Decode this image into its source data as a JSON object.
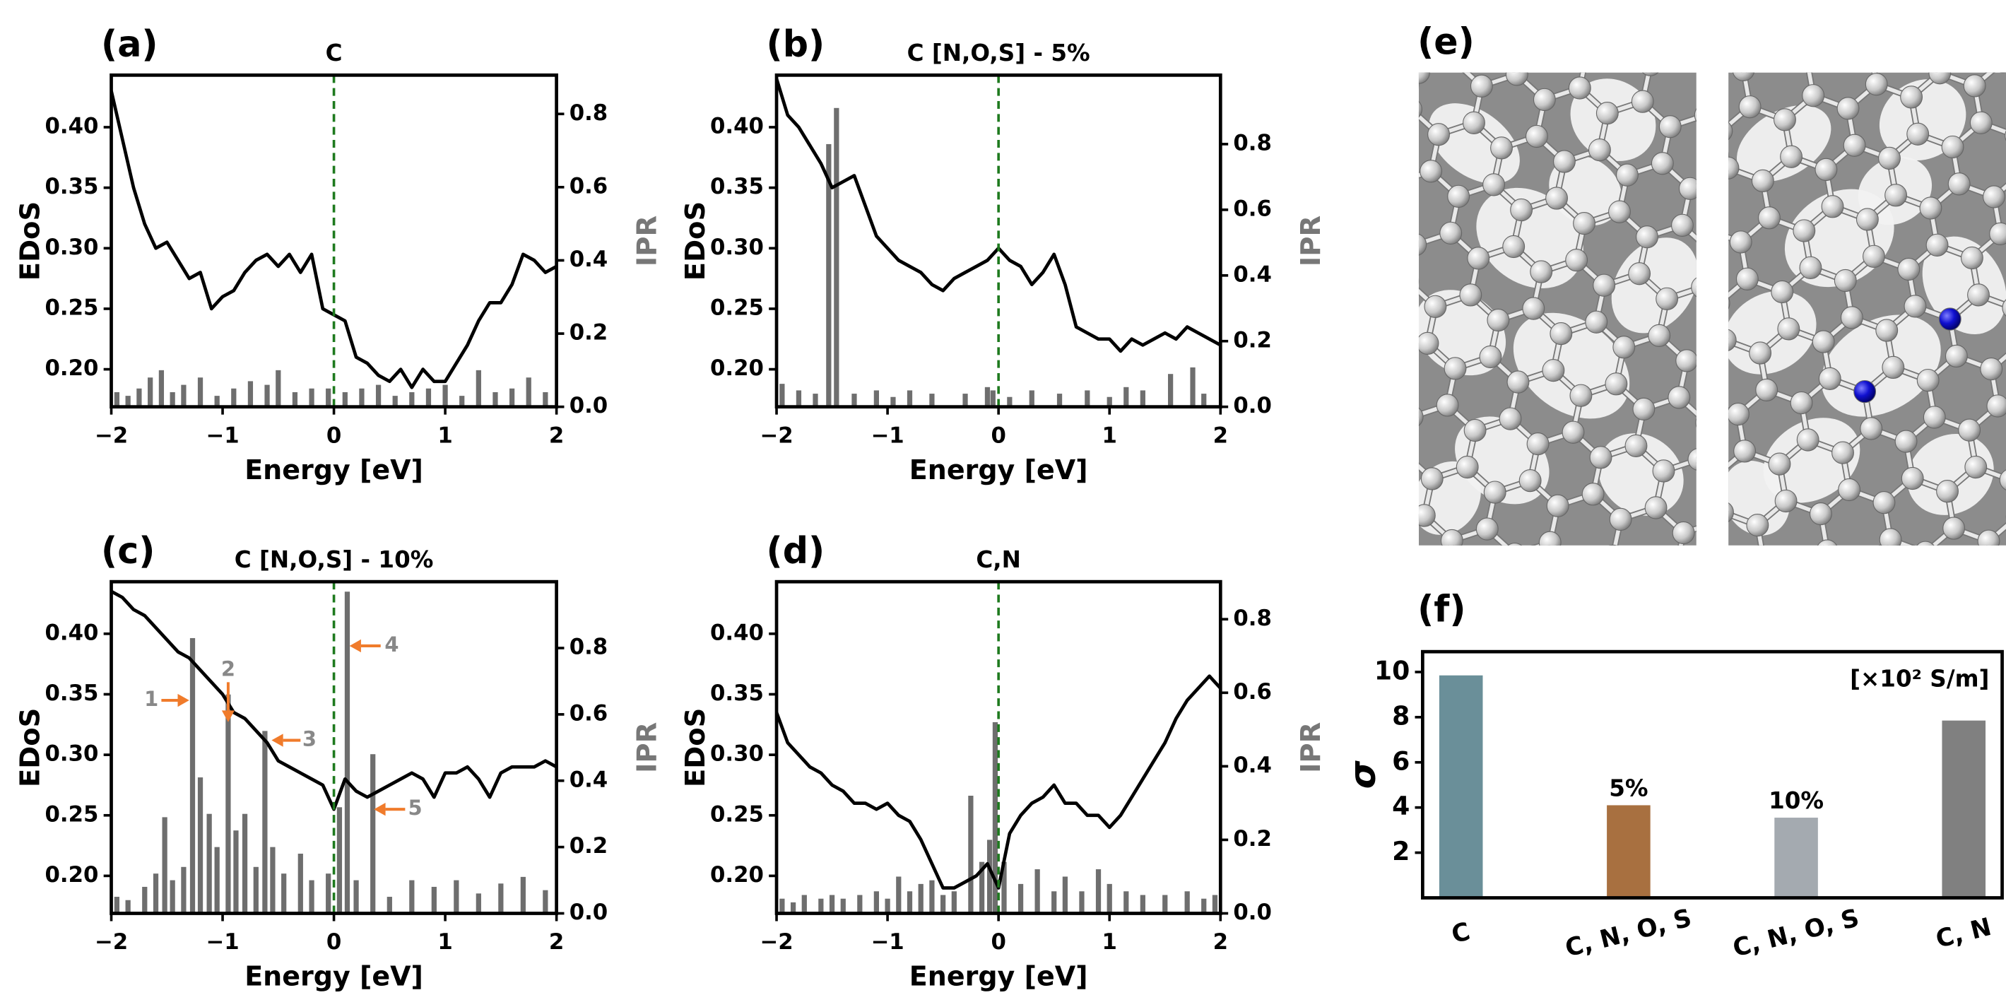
{
  "chart_data": [
    {
      "type": "line",
      "panel_label": "(a)",
      "title": "C",
      "xlabel": "Energy [eV]",
      "ylabel": "EDoS",
      "y2label": "IPR",
      "x": [
        -2,
        -1.9,
        -1.8,
        -1.7,
        -1.6,
        -1.5,
        -1.4,
        -1.3,
        -1.2,
        -1.1,
        -1,
        -0.9,
        -0.8,
        -0.7,
        -0.6,
        -0.5,
        -0.4,
        -0.3,
        -0.2,
        -0.1,
        0,
        0.1,
        0.2,
        0.3,
        0.4,
        0.5,
        0.6,
        0.7,
        0.8,
        0.9,
        1,
        1.1,
        1.2,
        1.3,
        1.4,
        1.5,
        1.6,
        1.7,
        1.8,
        1.9,
        2
      ],
      "series": [
        {
          "color": "#000000",
          "values": [
            0.43,
            0.39,
            0.35,
            0.32,
            0.3,
            0.305,
            0.29,
            0.275,
            0.28,
            0.25,
            0.26,
            0.265,
            0.28,
            0.29,
            0.295,
            0.285,
            0.295,
            0.28,
            0.295,
            0.25,
            0.245,
            0.24,
            0.21,
            0.205,
            0.195,
            0.19,
            0.2,
            0.185,
            0.2,
            0.19,
            0.19,
            0.205,
            0.22,
            0.24,
            0.255,
            0.255,
            0.27,
            0.295,
            0.29,
            0.28,
            0.285
          ]
        },
        {
          "type": "bar",
          "axis": "y2",
          "color": "#6e6e6e",
          "x": [
            -1.95,
            -1.85,
            -1.75,
            -1.65,
            -1.55,
            -1.45,
            -1.35,
            -1.2,
            -1.05,
            -0.9,
            -0.75,
            -0.6,
            -0.5,
            -0.35,
            -0.2,
            -0.05,
            0.1,
            0.25,
            0.4,
            0.55,
            0.7,
            0.85,
            1.0,
            1.15,
            1.3,
            1.45,
            1.6,
            1.75,
            1.9
          ],
          "values": [
            0.04,
            0.03,
            0.05,
            0.08,
            0.1,
            0.04,
            0.06,
            0.08,
            0.03,
            0.05,
            0.07,
            0.06,
            0.1,
            0.04,
            0.05,
            0.05,
            0.04,
            0.05,
            0.06,
            0.03,
            0.04,
            0.05,
            0.06,
            0.03,
            0.1,
            0.04,
            0.05,
            0.08,
            0.04
          ]
        }
      ],
      "xlim": [
        -2,
        2
      ],
      "ylim": [
        0.169,
        0.443
      ],
      "y2lim": [
        0,
        0.906
      ],
      "xticks": [
        {
          "value": -2,
          "label": "−2"
        },
        {
          "value": -1,
          "label": "−1"
        },
        0,
        1,
        2
      ],
      "yticks": [
        {
          "value": 0.2,
          "label": "0.20"
        },
        {
          "value": 0.25,
          "label": "0.25"
        },
        {
          "value": 0.3,
          "label": "0.30"
        },
        {
          "value": 0.35,
          "label": "0.35"
        },
        {
          "value": 0.4,
          "label": "0.40"
        }
      ],
      "y2ticks": [
        {
          "value": 0,
          "label": "0.0"
        },
        0.2,
        0.4,
        0.6,
        0.8
      ],
      "vline": 0,
      "vline_color": "#1e7a1e"
    },
    {
      "type": "line",
      "panel_label": "(b)",
      "title": "C [N,O,S] - 5%",
      "xlabel": "Energy [eV]",
      "ylabel": "EDoS",
      "y2label": "IPR",
      "x": [
        -2,
        -1.9,
        -1.8,
        -1.7,
        -1.6,
        -1.5,
        -1.4,
        -1.3,
        -1.2,
        -1.1,
        -1,
        -0.9,
        -0.8,
        -0.7,
        -0.6,
        -0.5,
        -0.4,
        -0.3,
        -0.2,
        -0.1,
        0,
        0.1,
        0.2,
        0.3,
        0.4,
        0.5,
        0.6,
        0.7,
        0.8,
        0.9,
        1,
        1.1,
        1.2,
        1.3,
        1.4,
        1.5,
        1.6,
        1.7,
        1.8,
        1.9,
        2
      ],
      "series": [
        {
          "color": "#000000",
          "values": [
            0.44,
            0.41,
            0.4,
            0.385,
            0.37,
            0.35,
            0.355,
            0.36,
            0.335,
            0.31,
            0.3,
            0.29,
            0.285,
            0.28,
            0.27,
            0.265,
            0.275,
            0.28,
            0.285,
            0.29,
            0.3,
            0.29,
            0.285,
            0.27,
            0.28,
            0.295,
            0.27,
            0.235,
            0.23,
            0.225,
            0.225,
            0.215,
            0.225,
            0.22,
            0.225,
            0.23,
            0.225,
            0.235,
            0.23,
            0.225,
            0.22
          ]
        },
        {
          "type": "bar",
          "axis": "y2",
          "color": "#6e6e6e",
          "x": [
            -1.95,
            -1.8,
            -1.65,
            -1.53,
            -1.46,
            -1.3,
            -1.1,
            -0.95,
            -0.8,
            -0.6,
            -0.3,
            -0.1,
            -0.05,
            0.1,
            0.3,
            0.55,
            0.8,
            1.0,
            1.15,
            1.3,
            1.55,
            1.75,
            1.85
          ],
          "values": [
            0.07,
            0.05,
            0.04,
            0.8,
            0.91,
            0.04,
            0.05,
            0.03,
            0.05,
            0.04,
            0.04,
            0.06,
            0.05,
            0.03,
            0.05,
            0.04,
            0.05,
            0.03,
            0.06,
            0.05,
            0.1,
            0.12,
            0.04
          ]
        }
      ],
      "xlim": [
        -2,
        2
      ],
      "ylim": [
        0.169,
        0.443
      ],
      "y2lim": [
        0,
        1.01
      ],
      "xticks": [
        {
          "value": -2,
          "label": "−2"
        },
        {
          "value": -1,
          "label": "−1"
        },
        0,
        1,
        2
      ],
      "yticks": [
        {
          "value": 0.2,
          "label": "0.20"
        },
        {
          "value": 0.25,
          "label": "0.25"
        },
        {
          "value": 0.3,
          "label": "0.30"
        },
        {
          "value": 0.35,
          "label": "0.35"
        },
        {
          "value": 0.4,
          "label": "0.40"
        }
      ],
      "y2ticks": [
        {
          "value": 0,
          "label": "0.0"
        },
        0.2,
        0.4,
        0.6,
        0.8
      ],
      "vline": 0,
      "vline_color": "#1e7a1e"
    },
    {
      "type": "line",
      "panel_label": "(c)",
      "title": "C [N,O,S] - 10%",
      "xlabel": "Energy [eV]",
      "ylabel": "EDoS",
      "y2label": "IPR",
      "x": [
        -2,
        -1.9,
        -1.8,
        -1.7,
        -1.6,
        -1.5,
        -1.4,
        -1.3,
        -1.2,
        -1.1,
        -1,
        -0.9,
        -0.8,
        -0.7,
        -0.6,
        -0.5,
        -0.4,
        -0.3,
        -0.2,
        -0.1,
        0,
        0.1,
        0.2,
        0.3,
        0.4,
        0.5,
        0.6,
        0.7,
        0.8,
        0.9,
        1,
        1.1,
        1.2,
        1.3,
        1.4,
        1.5,
        1.6,
        1.7,
        1.8,
        1.9,
        2
      ],
      "series": [
        {
          "color": "#000000",
          "values": [
            0.435,
            0.43,
            0.42,
            0.415,
            0.405,
            0.395,
            0.385,
            0.38,
            0.37,
            0.36,
            0.35,
            0.335,
            0.33,
            0.32,
            0.31,
            0.295,
            0.29,
            0.285,
            0.28,
            0.275,
            0.255,
            0.28,
            0.27,
            0.265,
            0.27,
            0.275,
            0.28,
            0.285,
            0.28,
            0.265,
            0.285,
            0.285,
            0.29,
            0.28,
            0.265,
            0.285,
            0.29,
            0.29,
            0.29,
            0.295,
            0.29
          ]
        },
        {
          "type": "bar",
          "axis": "y2",
          "color": "#6e6e6e",
          "x": [
            -1.95,
            -1.85,
            -1.7,
            -1.6,
            -1.52,
            -1.45,
            -1.35,
            -1.27,
            -1.2,
            -1.12,
            -1.05,
            -0.95,
            -0.88,
            -0.8,
            -0.7,
            -0.62,
            -0.55,
            -0.45,
            -0.3,
            -0.2,
            -0.05,
            0.05,
            0.12,
            0.2,
            0.35,
            0.5,
            0.7,
            0.9,
            1.1,
            1.3,
            1.5,
            1.7,
            1.9
          ],
          "values": [
            0.05,
            0.04,
            0.08,
            0.12,
            0.29,
            0.1,
            0.14,
            0.83,
            0.41,
            0.3,
            0.2,
            0.66,
            0.25,
            0.3,
            0.14,
            0.55,
            0.2,
            0.12,
            0.18,
            0.1,
            0.12,
            0.32,
            0.97,
            0.1,
            0.48,
            0.05,
            0.1,
            0.08,
            0.1,
            0.06,
            0.09,
            0.11,
            0.07
          ]
        }
      ],
      "xlim": [
        -2,
        2
      ],
      "ylim": [
        0.169,
        0.443
      ],
      "y2lim": [
        0,
        1.0
      ],
      "xticks": [
        {
          "value": -2,
          "label": "−2"
        },
        {
          "value": -1,
          "label": "−1"
        },
        0,
        1,
        2
      ],
      "yticks": [
        {
          "value": 0.2,
          "label": "0.20"
        },
        {
          "value": 0.25,
          "label": "0.25"
        },
        {
          "value": 0.3,
          "label": "0.30"
        },
        {
          "value": 0.35,
          "label": "0.35"
        },
        {
          "value": 0.4,
          "label": "0.40"
        }
      ],
      "y2ticks": [
        {
          "value": 0,
          "label": "0.0"
        },
        0.2,
        0.4,
        0.6,
        0.8
      ],
      "vline": 0,
      "vline_color": "#1e7a1e",
      "annotations": [
        "1",
        "2",
        "3",
        "4",
        "5"
      ],
      "annotation_color": "#f07b2b"
    },
    {
      "type": "line",
      "panel_label": "(d)",
      "title": "C,N",
      "xlabel": "Energy [eV]",
      "ylabel": "EDoS",
      "y2label": "IPR",
      "x": [
        -2,
        -1.9,
        -1.8,
        -1.7,
        -1.6,
        -1.5,
        -1.4,
        -1.3,
        -1.2,
        -1.1,
        -1,
        -0.9,
        -0.8,
        -0.7,
        -0.6,
        -0.5,
        -0.4,
        -0.3,
        -0.2,
        -0.1,
        0,
        0.1,
        0.2,
        0.3,
        0.4,
        0.5,
        0.6,
        0.7,
        0.8,
        0.9,
        1,
        1.1,
        1.2,
        1.3,
        1.4,
        1.5,
        1.6,
        1.7,
        1.8,
        1.9,
        2
      ],
      "series": [
        {
          "color": "#000000",
          "values": [
            0.335,
            0.31,
            0.3,
            0.29,
            0.285,
            0.275,
            0.27,
            0.26,
            0.26,
            0.255,
            0.26,
            0.25,
            0.245,
            0.23,
            0.21,
            0.19,
            0.19,
            0.195,
            0.2,
            0.21,
            0.19,
            0.235,
            0.25,
            0.26,
            0.265,
            0.275,
            0.26,
            0.26,
            0.25,
            0.25,
            0.24,
            0.25,
            0.265,
            0.28,
            0.295,
            0.31,
            0.33,
            0.345,
            0.355,
            0.365,
            0.355
          ]
        },
        {
          "type": "bar",
          "axis": "y2",
          "color": "#6e6e6e",
          "x": [
            -1.95,
            -1.85,
            -1.75,
            -1.6,
            -1.5,
            -1.4,
            -1.25,
            -1.1,
            -1.0,
            -0.9,
            -0.8,
            -0.7,
            -0.6,
            -0.5,
            -0.4,
            -0.25,
            -0.15,
            -0.08,
            -0.03,
            0.05,
            0.2,
            0.35,
            0.5,
            0.6,
            0.75,
            0.9,
            1.0,
            1.15,
            1.3,
            1.5,
            1.7,
            1.85,
            1.95
          ],
          "values": [
            0.04,
            0.03,
            0.05,
            0.04,
            0.05,
            0.04,
            0.05,
            0.06,
            0.04,
            0.1,
            0.06,
            0.08,
            0.09,
            0.05,
            0.06,
            0.32,
            0.14,
            0.2,
            0.52,
            0.14,
            0.08,
            0.12,
            0.06,
            0.1,
            0.06,
            0.12,
            0.08,
            0.06,
            0.05,
            0.05,
            0.06,
            0.04,
            0.05
          ]
        }
      ],
      "xlim": [
        -2,
        2
      ],
      "ylim": [
        0.169,
        0.443
      ],
      "y2lim": [
        0,
        0.902
      ],
      "xticks": [
        {
          "value": -2,
          "label": "−2"
        },
        {
          "value": -1,
          "label": "−1"
        },
        0,
        1,
        2
      ],
      "yticks": [
        {
          "value": 0.2,
          "label": "0.20"
        },
        {
          "value": 0.25,
          "label": "0.25"
        },
        {
          "value": 0.3,
          "label": "0.30"
        },
        {
          "value": 0.35,
          "label": "0.35"
        },
        {
          "value": 0.4,
          "label": "0.40"
        }
      ],
      "y2ticks": [
        {
          "value": 0,
          "label": "0.0"
        },
        0.2,
        0.4,
        0.6,
        0.8
      ],
      "vline": 0,
      "vline_color": "#1e7a1e"
    },
    {
      "type": "bar",
      "panel_label": "(f)",
      "ylabel": "σ",
      "unit": "[×10² S/m]",
      "categories": [
        "C",
        "C, N, O, S",
        "C, N, O, S",
        "C, N"
      ],
      "values": [
        9.85,
        4.1,
        3.55,
        7.85
      ],
      "colors": [
        "#6a8f99",
        "#a87040",
        "#a4aab0",
        "#808080"
      ],
      "bar_labels": [
        null,
        "5%",
        "10%",
        null
      ],
      "ylim": [
        0,
        10.9
      ],
      "yticks": [
        2,
        4,
        6,
        8,
        10
      ]
    }
  ],
  "panel_e": {
    "label": "(e)"
  }
}
